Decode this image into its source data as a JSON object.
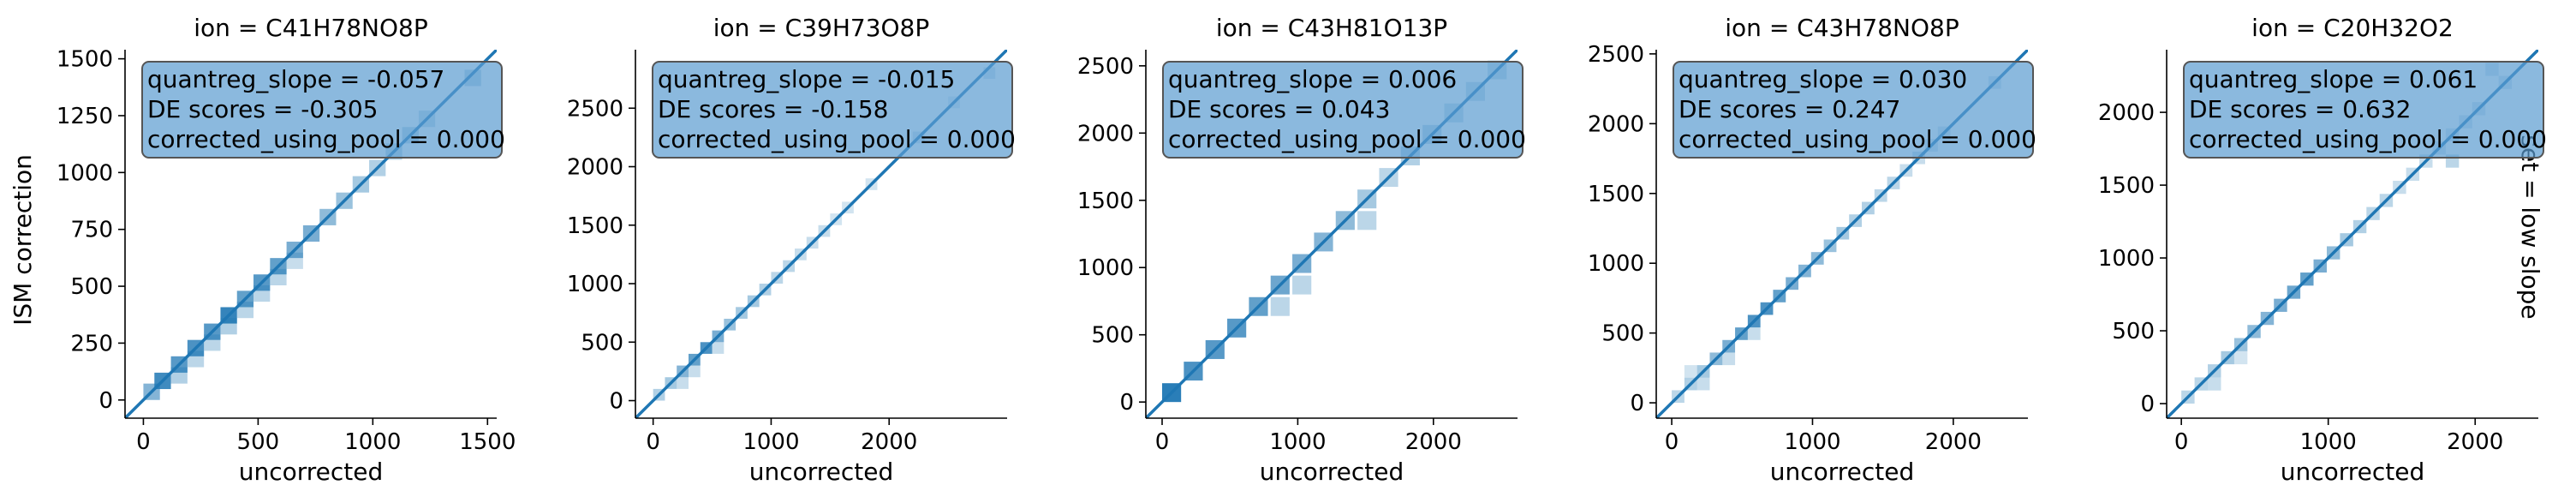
{
  "figure": {
    "row_label": "set = low slope",
    "y_axis_label": "ISM correction"
  },
  "colors": {
    "hist": "#1f77b4",
    "line": "#1f77b4",
    "box_fill": "#5a9bd0",
    "box_edge": "#555555"
  },
  "chart_data": [
    {
      "type": "heatmap",
      "title": "ion = C41H78NO8P",
      "xlabel": "uncorrected",
      "ylabel": "ISM correction",
      "xlim": [
        -80,
        1540
      ],
      "ylim": [
        -80,
        1540
      ],
      "xticks": [
        0,
        500,
        1000,
        1500
      ],
      "yticks": [
        0,
        250,
        500,
        750,
        1000,
        1250,
        1500
      ],
      "xtick_labels": [
        "0",
        "500",
        "1000",
        "1500"
      ],
      "ytick_labels": [
        "0",
        "250",
        "500",
        "750",
        "1000",
        "1250",
        "1500"
      ],
      "annotations": [
        "quantreg_slope = -0.057",
        "DE scores = -0.305",
        "corrected_using_pool = 0.000"
      ],
      "bin_width": 72,
      "cells": [
        [
          0,
          0,
          0.55
        ],
        [
          48,
          48,
          0.85
        ],
        [
          120,
          72,
          0.35
        ],
        [
          120,
          120,
          0.75
        ],
        [
          192,
          192,
          0.8
        ],
        [
          192,
          144,
          0.3
        ],
        [
          264,
          264,
          0.75
        ],
        [
          264,
          216,
          0.3
        ],
        [
          336,
          336,
          0.9
        ],
        [
          336,
          288,
          0.35
        ],
        [
          408,
          408,
          0.7
        ],
        [
          408,
          360,
          0.3
        ],
        [
          480,
          480,
          0.75
        ],
        [
          480,
          432,
          0.3
        ],
        [
          552,
          552,
          0.7
        ],
        [
          552,
          504,
          0.3
        ],
        [
          624,
          624,
          0.6
        ],
        [
          624,
          576,
          0.25
        ],
        [
          696,
          696,
          0.6
        ],
        [
          768,
          768,
          0.5
        ],
        [
          840,
          840,
          0.45
        ],
        [
          912,
          912,
          0.4
        ],
        [
          984,
          984,
          0.35
        ],
        [
          1056,
          1056,
          0.3
        ],
        [
          1128,
          1128,
          0.3
        ],
        [
          1200,
          1200,
          0.25
        ],
        [
          1400,
          1380,
          0.3
        ]
      ],
      "diagonal": true
    },
    {
      "type": "heatmap",
      "title": "ion = C39H73O8P",
      "xlabel": "uncorrected",
      "ylabel": "",
      "xlim": [
        -150,
        3000
      ],
      "ylim": [
        -150,
        3000
      ],
      "xticks": [
        0,
        1000,
        2000
      ],
      "yticks": [
        0,
        500,
        1000,
        1500,
        2000,
        2500
      ],
      "xtick_labels": [
        "0",
        "1000",
        "2000"
      ],
      "ytick_labels": [
        "0",
        "500",
        "1000",
        "1500",
        "2000",
        "2500"
      ],
      "annotations": [
        "quantreg_slope = -0.015",
        "DE scores = -0.158",
        "corrected_using_pool = 0.000"
      ],
      "bin_width": 100,
      "cells": [
        [
          0,
          0,
          0.35
        ],
        [
          100,
          100,
          0.4
        ],
        [
          200,
          200,
          0.55
        ],
        [
          300,
          300,
          0.7
        ],
        [
          400,
          400,
          0.8
        ],
        [
          500,
          500,
          0.6
        ],
        [
          600,
          600,
          0.45
        ],
        [
          700,
          700,
          0.4
        ],
        [
          800,
          800,
          0.4
        ],
        [
          900,
          900,
          0.35
        ],
        [
          1000,
          1000,
          0.3
        ],
        [
          1100,
          1100,
          0.3
        ],
        [
          1200,
          1200,
          0.25
        ],
        [
          1300,
          1300,
          0.25
        ],
        [
          1400,
          1400,
          0.25
        ],
        [
          1500,
          1500,
          0.2
        ],
        [
          1600,
          1600,
          0.2
        ],
        [
          1800,
          1800,
          0.2
        ],
        [
          2200,
          2200,
          0.2
        ],
        [
          2500,
          2500,
          0.15
        ],
        [
          2800,
          2750,
          0.2
        ],
        [
          300,
          200,
          0.25
        ],
        [
          500,
          400,
          0.25
        ],
        [
          200,
          100,
          0.25
        ]
      ],
      "diagonal": true
    },
    {
      "type": "heatmap",
      "title": "ion = C43H81O13P",
      "xlabel": "uncorrected",
      "ylabel": "",
      "xlim": [
        -120,
        2620
      ],
      "ylim": [
        -120,
        2620
      ],
      "xticks": [
        0,
        1000,
        2000
      ],
      "yticks": [
        0,
        500,
        1000,
        1500,
        2000,
        2500
      ],
      "xtick_labels": [
        "0",
        "1000",
        "2000"
      ],
      "ytick_labels": [
        "0",
        "500",
        "1000",
        "1500",
        "2000",
        "2500"
      ],
      "annotations": [
        "quantreg_slope = 0.006",
        "DE scores = 0.043",
        "corrected_using_pool = 0.000"
      ],
      "bin_width": 140,
      "cells": [
        [
          0,
          0,
          0.95
        ],
        [
          160,
          160,
          0.8
        ],
        [
          320,
          320,
          0.75
        ],
        [
          480,
          480,
          0.75
        ],
        [
          640,
          640,
          0.7
        ],
        [
          800,
          800,
          0.65
        ],
        [
          800,
          640,
          0.3
        ],
        [
          960,
          960,
          0.6
        ],
        [
          960,
          800,
          0.3
        ],
        [
          1120,
          1120,
          0.55
        ],
        [
          1280,
          1280,
          0.5
        ],
        [
          1440,
          1440,
          0.4
        ],
        [
          1440,
          1280,
          0.3
        ],
        [
          1600,
          1600,
          0.3
        ],
        [
          1760,
          1760,
          0.35
        ],
        [
          1920,
          1920,
          0.3
        ],
        [
          2080,
          2080,
          0.25
        ],
        [
          2240,
          2240,
          0.25
        ],
        [
          2400,
          2400,
          0.25
        ]
      ],
      "diagonal": true
    },
    {
      "type": "heatmap",
      "title": "ion = C43H78NO8P",
      "xlabel": "uncorrected",
      "ylabel": "",
      "xlim": [
        -110,
        2530
      ],
      "ylim": [
        -110,
        2530
      ],
      "xticks": [
        0,
        1000,
        2000
      ],
      "yticks": [
        0,
        500,
        1000,
        1500,
        2000,
        2500
      ],
      "xtick_labels": [
        "0",
        "1000",
        "2000"
      ],
      "ytick_labels": [
        "0",
        "500",
        "1000",
        "1500",
        "2000",
        "2500"
      ],
      "annotations": [
        "quantreg_slope = 0.030",
        "DE scores = 0.247",
        "corrected_using_pool = 0.000"
      ],
      "bin_width": 90,
      "cells": [
        [
          0,
          0,
          0.3
        ],
        [
          90,
          90,
          0.35
        ],
        [
          180,
          180,
          0.4
        ],
        [
          270,
          270,
          0.5
        ],
        [
          360,
          360,
          0.6
        ],
        [
          450,
          450,
          0.7
        ],
        [
          540,
          540,
          0.8
        ],
        [
          630,
          630,
          0.8
        ],
        [
          720,
          720,
          0.7
        ],
        [
          810,
          810,
          0.6
        ],
        [
          900,
          900,
          0.55
        ],
        [
          990,
          990,
          0.5
        ],
        [
          1080,
          1080,
          0.45
        ],
        [
          1170,
          1170,
          0.4
        ],
        [
          1260,
          1260,
          0.35
        ],
        [
          1350,
          1350,
          0.35
        ],
        [
          1440,
          1440,
          0.3
        ],
        [
          1530,
          1530,
          0.3
        ],
        [
          1620,
          1620,
          0.25
        ],
        [
          1710,
          1710,
          0.25
        ],
        [
          1800,
          1800,
          0.2
        ],
        [
          1890,
          1890,
          0.2
        ],
        [
          2250,
          2250,
          0.2
        ],
        [
          180,
          90,
          0.25
        ],
        [
          360,
          270,
          0.25
        ],
        [
          540,
          450,
          0.25
        ],
        [
          90,
          180,
          0.2
        ]
      ],
      "diagonal": true
    },
    {
      "type": "heatmap",
      "title": "ion = C20H32O2",
      "xlabel": "uncorrected",
      "ylabel": "",
      "xlim": [
        -100,
        2430
      ],
      "ylim": [
        -100,
        2430
      ],
      "xticks": [
        0,
        1000,
        2000
      ],
      "yticks": [
        0,
        500,
        1000,
        1500,
        2000
      ],
      "xtick_labels": [
        "0",
        "1000",
        "2000"
      ],
      "ytick_labels": [
        "0",
        "500",
        "1000",
        "1500",
        "2000"
      ],
      "annotations": [
        "quantreg_slope = 0.061",
        "DE scores = 0.632",
        "corrected_using_pool = 0.000"
      ],
      "bin_width": 90,
      "cells": [
        [
          0,
          0,
          0.3
        ],
        [
          90,
          90,
          0.3
        ],
        [
          180,
          180,
          0.35
        ],
        [
          270,
          270,
          0.4
        ],
        [
          360,
          360,
          0.45
        ],
        [
          450,
          450,
          0.5
        ],
        [
          540,
          540,
          0.55
        ],
        [
          630,
          630,
          0.6
        ],
        [
          720,
          720,
          0.65
        ],
        [
          810,
          810,
          0.7
        ],
        [
          900,
          900,
          0.6
        ],
        [
          990,
          990,
          0.5
        ],
        [
          1080,
          1080,
          0.4
        ],
        [
          1170,
          1170,
          0.35
        ],
        [
          1260,
          1260,
          0.3
        ],
        [
          1350,
          1350,
          0.3
        ],
        [
          1440,
          1440,
          0.25
        ],
        [
          1530,
          1530,
          0.25
        ],
        [
          1620,
          1620,
          0.25
        ],
        [
          1710,
          1710,
          0.2
        ],
        [
          1800,
          1800,
          0.2
        ],
        [
          1890,
          1890,
          0.2
        ],
        [
          1980,
          1980,
          0.2
        ],
        [
          2160,
          2160,
          0.2
        ],
        [
          1800,
          1620,
          0.3
        ],
        [
          180,
          90,
          0.25
        ],
        [
          360,
          270,
          0.2
        ],
        [
          2070,
          2250,
          0.2
        ]
      ],
      "diagonal": true
    }
  ]
}
